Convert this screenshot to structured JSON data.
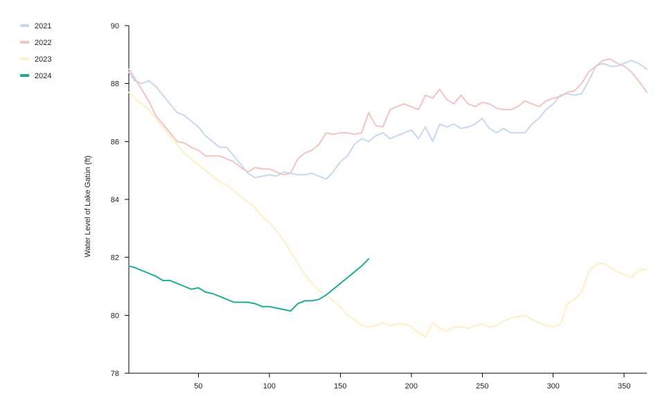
{
  "chart_data": {
    "type": "line",
    "title": "",
    "xlabel": "",
    "ylabel": "Water Level of Lake Gatún (ft)",
    "xlim": [
      1,
      366
    ],
    "ylim": [
      78,
      90
    ],
    "x_ticks": [
      50,
      100,
      150,
      200,
      250,
      300,
      350
    ],
    "y_ticks": [
      78,
      80,
      82,
      84,
      86,
      88,
      90
    ],
    "grid": false,
    "legend_position": "top-left",
    "series": [
      {
        "name": "2021",
        "color": "#c6d9f1",
        "x": [
          1,
          5,
          10,
          15,
          20,
          25,
          30,
          35,
          40,
          45,
          50,
          55,
          60,
          65,
          70,
          75,
          80,
          85,
          90,
          95,
          100,
          105,
          110,
          115,
          120,
          125,
          130,
          135,
          140,
          145,
          150,
          155,
          160,
          165,
          170,
          175,
          180,
          185,
          190,
          195,
          200,
          205,
          210,
          215,
          220,
          225,
          230,
          235,
          240,
          245,
          250,
          255,
          260,
          265,
          270,
          275,
          280,
          285,
          290,
          295,
          300,
          305,
          310,
          315,
          320,
          325,
          330,
          335,
          340,
          345,
          350,
          355,
          360,
          366
        ],
        "values": [
          88.4,
          88.1,
          88.0,
          88.1,
          87.9,
          87.6,
          87.3,
          87.0,
          86.9,
          86.7,
          86.5,
          86.2,
          86.0,
          85.8,
          85.8,
          85.5,
          85.2,
          84.9,
          84.75,
          84.8,
          84.85,
          84.8,
          84.95,
          84.9,
          84.85,
          84.85,
          84.9,
          84.8,
          84.7,
          84.95,
          85.3,
          85.5,
          85.9,
          86.1,
          86.0,
          86.2,
          86.3,
          86.1,
          86.2,
          86.3,
          86.4,
          86.1,
          86.5,
          86.0,
          86.6,
          86.5,
          86.6,
          86.45,
          86.5,
          86.6,
          86.8,
          86.45,
          86.3,
          86.45,
          86.3,
          86.3,
          86.3,
          86.6,
          86.8,
          87.1,
          87.3,
          87.6,
          87.65,
          87.6,
          87.65,
          88.1,
          88.6,
          88.7,
          88.6,
          88.6,
          88.7,
          88.8,
          88.7,
          88.5
        ]
      },
      {
        "name": "2022",
        "color": "#f2c4c4",
        "x": [
          1,
          5,
          10,
          15,
          20,
          25,
          30,
          35,
          40,
          45,
          50,
          55,
          60,
          65,
          70,
          75,
          80,
          85,
          90,
          95,
          100,
          105,
          110,
          115,
          120,
          125,
          130,
          135,
          140,
          145,
          150,
          155,
          160,
          165,
          170,
          175,
          180,
          185,
          190,
          195,
          200,
          205,
          210,
          215,
          220,
          225,
          230,
          235,
          240,
          245,
          250,
          255,
          260,
          265,
          270,
          275,
          280,
          285,
          290,
          295,
          300,
          305,
          310,
          315,
          320,
          325,
          330,
          335,
          340,
          345,
          350,
          355,
          360,
          366
        ],
        "values": [
          88.5,
          88.2,
          87.8,
          87.4,
          86.9,
          86.6,
          86.3,
          86.0,
          85.95,
          85.8,
          85.7,
          85.5,
          85.5,
          85.5,
          85.4,
          85.3,
          85.1,
          84.95,
          85.1,
          85.05,
          85.05,
          84.95,
          84.85,
          84.9,
          85.4,
          85.6,
          85.7,
          85.9,
          86.3,
          86.25,
          86.3,
          86.3,
          86.25,
          86.3,
          87.0,
          86.55,
          86.5,
          87.1,
          87.2,
          87.3,
          87.2,
          87.1,
          87.6,
          87.5,
          87.8,
          87.45,
          87.3,
          87.6,
          87.3,
          87.2,
          87.35,
          87.3,
          87.15,
          87.1,
          87.1,
          87.2,
          87.4,
          87.3,
          87.2,
          87.4,
          87.5,
          87.55,
          87.7,
          87.75,
          88.0,
          88.4,
          88.6,
          88.8,
          88.85,
          88.7,
          88.6,
          88.4,
          88.1,
          87.7
        ]
      },
      {
        "name": "2023",
        "color": "#fdf0c4",
        "x": [
          1,
          5,
          10,
          15,
          20,
          25,
          30,
          35,
          40,
          45,
          50,
          55,
          60,
          65,
          70,
          75,
          80,
          85,
          90,
          95,
          100,
          105,
          110,
          115,
          120,
          125,
          130,
          135,
          140,
          145,
          150,
          155,
          160,
          165,
          170,
          175,
          180,
          185,
          190,
          195,
          200,
          205,
          210,
          215,
          220,
          225,
          230,
          235,
          240,
          245,
          250,
          255,
          260,
          265,
          270,
          275,
          280,
          285,
          290,
          295,
          300,
          305,
          310,
          315,
          320,
          325,
          330,
          335,
          340,
          345,
          350,
          355,
          360,
          366
        ],
        "values": [
          87.7,
          87.5,
          87.3,
          87.1,
          86.8,
          86.5,
          86.2,
          85.9,
          85.6,
          85.4,
          85.2,
          85.0,
          84.8,
          84.6,
          84.5,
          84.3,
          84.1,
          83.9,
          83.7,
          83.4,
          83.2,
          82.9,
          82.6,
          82.2,
          81.8,
          81.4,
          81.1,
          80.85,
          80.7,
          80.5,
          80.3,
          80.0,
          79.85,
          79.65,
          79.6,
          79.65,
          79.75,
          79.65,
          79.7,
          79.7,
          79.6,
          79.4,
          79.25,
          79.75,
          79.55,
          79.45,
          79.6,
          79.6,
          79.55,
          79.65,
          79.7,
          79.6,
          79.65,
          79.8,
          79.9,
          79.95,
          80.0,
          79.85,
          79.75,
          79.65,
          79.6,
          79.7,
          80.4,
          80.55,
          80.8,
          81.5,
          81.75,
          81.8,
          81.65,
          81.5,
          81.4,
          81.3,
          81.55,
          81.6
        ]
      },
      {
        "name": "2024",
        "color": "#22aa99",
        "x": [
          1,
          5,
          10,
          15,
          20,
          25,
          30,
          35,
          40,
          45,
          50,
          55,
          60,
          65,
          70,
          75,
          80,
          85,
          90,
          95,
          100,
          105,
          110,
          115,
          120,
          125,
          130,
          135,
          140,
          145,
          150,
          155,
          160,
          165,
          170
        ],
        "values": [
          81.7,
          81.65,
          81.55,
          81.45,
          81.35,
          81.2,
          81.2,
          81.1,
          81.0,
          80.9,
          80.95,
          80.8,
          80.75,
          80.65,
          80.55,
          80.45,
          80.45,
          80.45,
          80.4,
          80.3,
          80.3,
          80.25,
          80.2,
          80.15,
          80.4,
          80.5,
          80.5,
          80.55,
          80.7,
          80.9,
          81.1,
          81.3,
          81.5,
          81.7,
          81.95
        ]
      }
    ]
  }
}
